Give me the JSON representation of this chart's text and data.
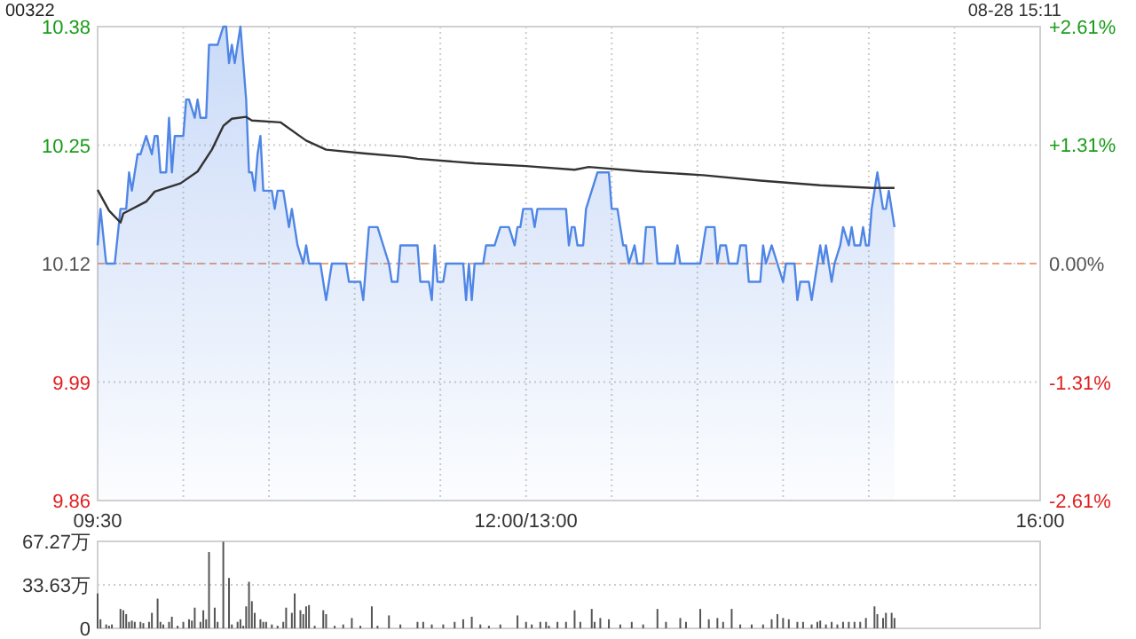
{
  "chart_data": [
    {
      "type": "area",
      "title": "00322",
      "annotations": [
        "08-28 15:11"
      ],
      "categories": [
        "09:30",
        null,
        null,
        null,
        null,
        null,
        null,
        null,
        null,
        null,
        null,
        null,
        null,
        null,
        null,
        null,
        null,
        null,
        null,
        null,
        null,
        null,
        null,
        null,
        null,
        null,
        null,
        null,
        null,
        null,
        null,
        null,
        null,
        null,
        null,
        null,
        null,
        null,
        null,
        null,
        null,
        null,
        null,
        null,
        null,
        null,
        null,
        null,
        null,
        null,
        null,
        null,
        null,
        null,
        null,
        null,
        null,
        null,
        null,
        null,
        null,
        null,
        null,
        null,
        null,
        null,
        null,
        null,
        null,
        null,
        null,
        null,
        null,
        null,
        null,
        null,
        null,
        null,
        null,
        null,
        null,
        null,
        null,
        null,
        null,
        null,
        null,
        null,
        null,
        null,
        null,
        null,
        null,
        null,
        null,
        null,
        null,
        null,
        null,
        null,
        null,
        null,
        null,
        null,
        null,
        null,
        null,
        null,
        null,
        null,
        null,
        null,
        null,
        null,
        null,
        null,
        null,
        null,
        null,
        null,
        null,
        null,
        null,
        null,
        null,
        null,
        null,
        null,
        null,
        null,
        null,
        null,
        null,
        null,
        null,
        null,
        null,
        null,
        null,
        null,
        null,
        null,
        null,
        null,
        null,
        null,
        null,
        null,
        null,
        null,
        "12:00/13:00",
        null,
        null,
        null,
        null,
        null,
        null,
        null,
        null,
        null,
        null,
        null,
        null,
        null,
        null,
        null,
        null,
        null,
        null,
        null,
        null,
        null,
        null,
        null,
        null,
        null,
        null,
        null,
        null,
        null,
        null,
        null,
        null,
        null,
        null,
        null,
        null,
        null,
        null,
        null,
        null,
        null,
        null,
        null,
        null,
        null,
        null,
        null,
        null,
        null,
        null,
        null,
        null,
        null,
        null,
        null,
        null,
        null,
        null,
        null,
        null,
        null,
        null,
        null,
        null,
        null,
        null,
        null,
        null,
        null,
        null,
        null,
        null,
        null,
        null,
        null,
        null,
        null,
        null,
        null,
        null,
        null,
        null,
        null,
        null,
        null,
        null,
        null,
        null,
        null,
        null,
        null,
        null,
        null,
        null,
        null,
        null,
        null,
        null,
        null,
        null,
        null,
        null,
        null,
        null,
        null,
        null,
        null,
        null,
        null,
        null,
        null,
        null,
        null,
        null,
        null,
        null,
        null,
        null,
        null,
        null,
        null,
        null,
        null,
        null,
        null,
        null,
        null,
        null,
        null,
        null,
        null,
        null,
        null,
        null,
        null,
        null,
        null,
        null,
        null,
        null,
        null,
        null,
        null,
        null,
        null,
        null,
        null,
        null,
        null,
        null,
        null,
        null,
        null,
        null,
        null,
        null,
        null,
        null,
        null,
        null,
        null,
        null,
        null,
        null,
        null,
        null,
        null,
        null,
        null,
        null,
        null,
        null,
        null,
        null,
        null,
        null,
        null,
        null,
        null,
        "16:00"
      ],
      "ylim": [
        9.86,
        10.38
      ],
      "yticks": [
        9.86,
        9.99,
        10.12,
        10.25,
        10.38
      ],
      "y2lim": [
        -2.61,
        2.61
      ],
      "y2ticks": [
        {
          "value": -2.61,
          "label": "-2.61%"
        },
        {
          "value": -1.31,
          "label": "-1.31%"
        },
        {
          "value": 0,
          "label": "0.00%"
        },
        {
          "value": 1.31,
          "label": "+1.31%"
        },
        {
          "value": 2.61,
          "label": "+2.61%"
        }
      ],
      "grid": true,
      "ref_lines": [
        {
          "axis": "y",
          "value": 10.12,
          "color": "#e8a080",
          "line_style": "dashed"
        }
      ],
      "series": [
        {
          "color": "#4f86e6",
          "values": [
            10.14,
            10.18,
            null,
            10.12,
            null,
            null,
            10.12,
            null,
            10.18,
            null,
            10.18,
            10.22,
            10.2,
            null,
            10.24,
            10.24,
            null,
            10.26,
            null,
            10.24,
            10.26,
            10.26,
            10.22,
            null,
            10.22,
            10.28,
            10.22,
            10.26,
            null,
            null,
            10.26,
            10.3,
            10.3,
            null,
            10.28,
            10.3,
            10.28,
            null,
            10.28,
            10.36,
            null,
            null,
            10.36,
            null,
            10.38,
            10.38,
            10.34,
            10.36,
            10.34,
            null,
            10.38,
            null,
            10.3,
            10.22,
            10.22,
            10.2,
            10.24,
            10.26,
            10.2,
            null,
            null,
            10.2,
            10.18,
            10.2,
            null,
            10.2,
            null,
            10.16,
            10.18,
            null,
            10.14,
            null,
            10.12,
            10.14,
            10.12,
            null,
            null,
            null,
            10.12,
            null,
            10.08,
            null,
            10.12,
            null,
            null,
            null,
            null,
            10.12,
            10.1,
            null,
            null,
            null,
            10.1,
            10.08,
            null,
            10.16,
            null,
            null,
            10.16,
            null,
            null,
            null,
            10.12,
            10.1,
            null,
            10.1,
            10.14,
            null,
            10.14,
            null,
            null,
            null,
            10.14,
            10.1,
            null,
            null,
            10.1,
            10.08,
            10.14,
            10.1,
            null,
            10.1,
            10.12,
            null,
            null,
            null,
            null,
            null,
            10.12,
            10.08,
            10.12,
            10.08,
            10.12,
            null,
            null,
            10.12,
            10.14,
            null,
            null,
            10.14,
            null,
            10.16,
            null,
            null,
            10.16,
            null,
            10.14,
            10.16,
            10.16,
            10.18,
            null,
            null,
            10.18,
            10.16,
            10.18,
            null,
            null,
            null,
            null,
            null,
            null,
            null,
            null,
            null,
            10.18,
            10.14,
            10.16,
            10.16,
            10.14,
            null,
            10.14,
            10.18,
            null,
            10.2,
            null,
            10.22,
            null,
            null,
            null,
            10.22,
            10.18,
            null,
            10.18,
            null,
            10.14,
            10.14,
            10.12,
            null,
            10.14,
            10.12,
            null,
            10.12,
            10.16,
            null,
            null,
            10.16,
            10.12,
            null,
            null,
            null,
            null,
            null,
            10.12,
            10.14,
            10.12,
            null,
            null,
            null,
            null,
            null,
            null,
            10.12,
            null,
            10.16,
            null,
            null,
            10.16,
            10.12,
            10.14,
            null,
            10.14,
            10.12,
            null,
            null,
            10.12,
            10.14,
            null,
            10.14,
            10.1,
            null,
            null,
            null,
            10.1,
            10.14,
            10.12,
            null,
            10.14,
            null,
            10.12,
            null,
            10.1,
            10.12,
            null,
            null,
            10.12,
            10.08,
            10.1,
            null,
            null,
            10.1,
            10.08,
            null,
            10.12,
            10.14,
            10.12,
            10.14,
            null,
            10.1,
            10.12,
            null,
            10.14,
            10.16,
            null,
            10.14,
            10.16,
            10.14,
            null,
            10.14,
            10.16,
            10.14,
            10.14,
            10.18,
            null,
            10.22,
            10.2,
            10.18,
            10.18,
            10.2,
            10.18,
            10.16,
            null,
            null,
            null,
            null,
            null,
            null,
            null,
            null,
            null,
            null,
            null,
            null,
            null,
            null,
            null,
            null,
            null,
            null,
            null,
            null,
            null,
            null,
            null,
            null,
            null,
            null,
            null,
            null,
            null,
            null,
            null,
            null,
            null,
            null,
            null,
            null,
            null,
            null,
            null,
            null,
            null,
            null,
            null,
            null,
            null,
            null,
            null,
            null,
            null,
            null,
            null
          ]
        },
        {
          "type": "line",
          "color": "#333333",
          "values": [
            10.201,
            null,
            null,
            null,
            10.178,
            null,
            null,
            null,
            10.165,
            10.175,
            null,
            null,
            null,
            null,
            null,
            null,
            null,
            10.188,
            null,
            null,
            10.199,
            null,
            null,
            null,
            null,
            null,
            null,
            null,
            null,
            10.208,
            null,
            null,
            null,
            null,
            null,
            10.221,
            null,
            null,
            null,
            null,
            10.245,
            null,
            null,
            null,
            10.271,
            null,
            null,
            10.279,
            null,
            null,
            null,
            null,
            10.281,
            null,
            10.277,
            null,
            null,
            null,
            null,
            null,
            null,
            null,
            null,
            null,
            10.275,
            null,
            null,
            null,
            null,
            null,
            null,
            null,
            null,
            10.255,
            null,
            null,
            null,
            null,
            null,
            null,
            10.245,
            null,
            null,
            null,
            null,
            null,
            null,
            null,
            null,
            null,
            null,
            null,
            null,
            10.241,
            null,
            null,
            null,
            null,
            null,
            null,
            null,
            null,
            null,
            null,
            null,
            null,
            null,
            null,
            10.237,
            null,
            null,
            null,
            10.235,
            null,
            null,
            null,
            null,
            null,
            null,
            null,
            null,
            null,
            null,
            null,
            null,
            null,
            null,
            null,
            null,
            null,
            null,
            null,
            10.23,
            null,
            null,
            null,
            null,
            null,
            null,
            null,
            null,
            null,
            null,
            null,
            null,
            null,
            null,
            null,
            null,
            null,
            10.227,
            null,
            null,
            null,
            null,
            null,
            null,
            null,
            null,
            null,
            null,
            null,
            null,
            null,
            null,
            null,
            null,
            10.223,
            null,
            null,
            null,
            null,
            10.226,
            null,
            null,
            null,
            null,
            null,
            null,
            null,
            null,
            null,
            null,
            null,
            null,
            null,
            null,
            null,
            null,
            null,
            null,
            10.221,
            null,
            null,
            null,
            null,
            null,
            null,
            null,
            null,
            null,
            null,
            null,
            null,
            null,
            null,
            null,
            null,
            null,
            null,
            null,
            null,
            10.217,
            null,
            null,
            null,
            null,
            null,
            null,
            null,
            null,
            null,
            null,
            null,
            null,
            null,
            null,
            null,
            null,
            null,
            null,
            null,
            10.211,
            null,
            null,
            null,
            null,
            null,
            null,
            null,
            null,
            null,
            null,
            null,
            null,
            null,
            null,
            null,
            null,
            null,
            null,
            null,
            null,
            10.206,
            null,
            null,
            null,
            null,
            null,
            null,
            null,
            null,
            null,
            null,
            null,
            null,
            null,
            null,
            null,
            null,
            null,
            10.203,
            null,
            null,
            null,
            null,
            null,
            null,
            null,
            10.203,
            null,
            null,
            null,
            null,
            null,
            null,
            null,
            null,
            null,
            null,
            null,
            null,
            null,
            null,
            null,
            null,
            null,
            null,
            null,
            null,
            null,
            null,
            null,
            null,
            null,
            null,
            null,
            null,
            null,
            null,
            null,
            null,
            null,
            null,
            null,
            null,
            null,
            null,
            null,
            null,
            null,
            null,
            null,
            null,
            null,
            null,
            null,
            null,
            null,
            null,
            null
          ]
        }
      ]
    },
    {
      "type": "bar",
      "tick_labels": "y",
      "categories": [
        null,
        null,
        null,
        null,
        null,
        null,
        null,
        null,
        null,
        null,
        null,
        null,
        null,
        null,
        null,
        null,
        null,
        null,
        null,
        null,
        null,
        null,
        null,
        null,
        null,
        null,
        null,
        null,
        null,
        null,
        null,
        null,
        null,
        null,
        null,
        null,
        null,
        null,
        null,
        null,
        null,
        null,
        null,
        null,
        null,
        null,
        null,
        null,
        null,
        null,
        null,
        null,
        null,
        null,
        null,
        null,
        null,
        null,
        null,
        null,
        null,
        null,
        null,
        null,
        null,
        null,
        null,
        null,
        null,
        null,
        null,
        null,
        null,
        null,
        null,
        null,
        null,
        null,
        null,
        null,
        null,
        null,
        null,
        null,
        null,
        null,
        null,
        null,
        null,
        null,
        null,
        null,
        null,
        null,
        null,
        null,
        null,
        null,
        null,
        null,
        null,
        null,
        null,
        null,
        null,
        null,
        null,
        null,
        null,
        null,
        null,
        null,
        null,
        null,
        null,
        null,
        null,
        null,
        null,
        null,
        null,
        null,
        null,
        null,
        null,
        null,
        null,
        null,
        null,
        null,
        null,
        null,
        null,
        null,
        null,
        null,
        null,
        null,
        null,
        null,
        null,
        null,
        null,
        null,
        null,
        null,
        null,
        null,
        null,
        null,
        null,
        null,
        null,
        null,
        null,
        null,
        null,
        null,
        null,
        null,
        null,
        null,
        null,
        null,
        null,
        null,
        null,
        null,
        null,
        null,
        null,
        null,
        null,
        null,
        null,
        null,
        null,
        null,
        null,
        null,
        null,
        null,
        null,
        null,
        null,
        null,
        null,
        null,
        null,
        null,
        null,
        null,
        null,
        null,
        null,
        null,
        null,
        null,
        null,
        null,
        null,
        null,
        null,
        null,
        null,
        null,
        null,
        null,
        null,
        null,
        null,
        null,
        null,
        null,
        null,
        null,
        null,
        null,
        null,
        null,
        null,
        null,
        null,
        null,
        null,
        null,
        null,
        null,
        null,
        null,
        null,
        null,
        null,
        null,
        null,
        null,
        null,
        null,
        null,
        null,
        null,
        null,
        null,
        null,
        null,
        null,
        null,
        null,
        null,
        null,
        null,
        null,
        null,
        null,
        null,
        null,
        null,
        null,
        null,
        null,
        null,
        null,
        null,
        null,
        null,
        null,
        null,
        null,
        null,
        null,
        null,
        null,
        null,
        null,
        null,
        null,
        null,
        null,
        null,
        null,
        null,
        null,
        null,
        null,
        null,
        null,
        null,
        null,
        null,
        null,
        null,
        null,
        null,
        null,
        null,
        null,
        null,
        null,
        null,
        null,
        null,
        null,
        null,
        null,
        null,
        null,
        null,
        null,
        null,
        null,
        null,
        null,
        null,
        null,
        null,
        null,
        null,
        null,
        null,
        null,
        null,
        null,
        null,
        null,
        null,
        null,
        null,
        null,
        null,
        null,
        null
      ],
      "ylim": [
        0,
        67.27
      ],
      "yticks": [
        0,
        {
          "value": 33.63,
          "label": "33.63万"
        },
        {
          "value": 67.27,
          "label": "67.27万"
        }
      ],
      "grid": "y",
      "series": [
        {
          "color": "#555555",
          "values": [
            27,
            7,
            null,
            3,
            2,
            3,
            null,
            null,
            15,
            14,
            11,
            5,
            6,
            5,
            null,
            5,
            4,
            null,
            5,
            12,
            null,
            23,
            5,
            3,
            null,
            5,
            9,
            null,
            2,
            null,
            5,
            null,
            7,
            6,
            16,
            null,
            5,
            14,
            7,
            59,
            null,
            16,
            5,
            null,
            67,
            null,
            39,
            3,
            null,
            5,
            7,
            2,
            17,
            36,
            21,
            12,
            null,
            7,
            5,
            5,
            null,
            3,
            null,
            2,
            null,
            5,
            16,
            null,
            12,
            27,
            null,
            14,
            11,
            17,
            18,
            null,
            2,
            null,
            null,
            14,
            11,
            null,
            null,
            2,
            null,
            null,
            3,
            null,
            null,
            8,
            null,
            null,
            2,
            null,
            null,
            null,
            17,
            null,
            2,
            null,
            null,
            null,
            10,
            null,
            null,
            null,
            3,
            null,
            null,
            null,
            null,
            null,
            5,
            null,
            5,
            null,
            null,
            3,
            null,
            null,
            null,
            3,
            null,
            null,
            null,
            5,
            null,
            null,
            7,
            null,
            null,
            9,
            null,
            null,
            3,
            null,
            null,
            2,
            null,
            null,
            null,
            3,
            null,
            null,
            null,
            null,
            null,
            10,
            null,
            null,
            5,
            null,
            3,
            null,
            null,
            5,
            null,
            5,
            2,
            null,
            null,
            5,
            null,
            null,
            5,
            null,
            null,
            14,
            null,
            5,
            null,
            null,
            null,
            15,
            5,
            null,
            8,
            null,
            null,
            7,
            null,
            null,
            null,
            3,
            null,
            null,
            null,
            5,
            null,
            null,
            null,
            3,
            null,
            null,
            null,
            null,
            15,
            null,
            null,
            5,
            null,
            null,
            null,
            null,
            8,
            null,
            5,
            null,
            null,
            null,
            null,
            15,
            null,
            null,
            7,
            null,
            null,
            8,
            null,
            5,
            null,
            null,
            15,
            null,
            null,
            3,
            null,
            null,
            null,
            3,
            null,
            null,
            null,
            3,
            null,
            null,
            7,
            null,
            11,
            null,
            8,
            null,
            7,
            null,
            null,
            5,
            null,
            5,
            null,
            null,
            3,
            null,
            5,
            6,
            null,
            3,
            null,
            5,
            null,
            3,
            null,
            5,
            null,
            5,
            null,
            5,
            null,
            5,
            null,
            8,
            null,
            null,
            17,
            11,
            null,
            8,
            12,
            null,
            12,
            8,
            null,
            null,
            null,
            null,
            null,
            null,
            null,
            null,
            null,
            null,
            null,
            null,
            null,
            null,
            null,
            null,
            null,
            null,
            null,
            null,
            null,
            null,
            null,
            null,
            null,
            null,
            null,
            null,
            null,
            null,
            null,
            null,
            null,
            null,
            null,
            null,
            null,
            null,
            null,
            null,
            null,
            null,
            null,
            null,
            null,
            null,
            null,
            null,
            null,
            null,
            null
          ]
        }
      ]
    }
  ]
}
